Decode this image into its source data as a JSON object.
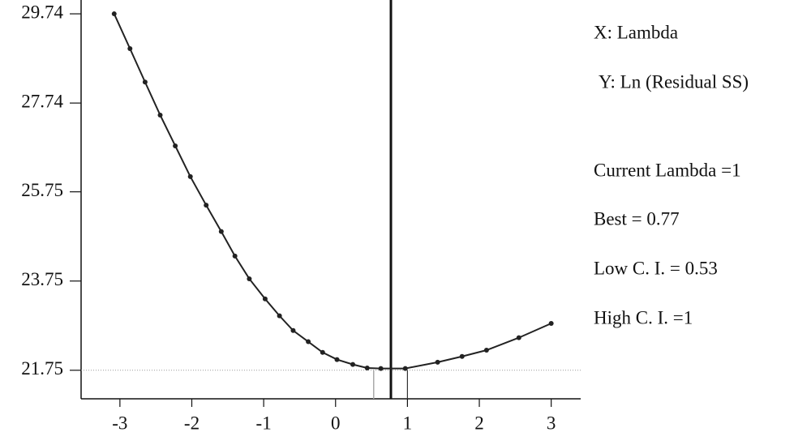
{
  "chart_data": {
    "type": "line",
    "x_label": "X: Lambda",
    "y_label": "Y: Ln (Residual SS)",
    "annotations": [
      "Current Lambda =1",
      "Best = 0.77",
      "Low C. I. = 0.53",
      "High C. I. =1"
    ],
    "x": [
      -3.08,
      -2.86,
      -2.65,
      -2.44,
      -2.23,
      -2.02,
      -1.8,
      -1.59,
      -1.4,
      -1.2,
      -0.98,
      -0.78,
      -0.59,
      -0.38,
      -0.18,
      0.02,
      0.24,
      0.44,
      0.63,
      0.97,
      1.42,
      1.76,
      2.1,
      2.55,
      3.0
    ],
    "values": [
      29.74,
      28.96,
      28.21,
      27.47,
      26.78,
      26.09,
      25.45,
      24.86,
      24.31,
      23.8,
      23.35,
      22.97,
      22.64,
      22.39,
      22.15,
      21.99,
      21.88,
      21.8,
      21.79,
      21.79,
      21.93,
      22.06,
      22.2,
      22.48,
      22.8
    ],
    "color": "#222222",
    "xlim": [
      -3.54,
      3.41
    ],
    "ylim": [
      21.11,
      30.05
    ],
    "xticks": [
      -3,
      -2,
      -1,
      0,
      1,
      2,
      3
    ],
    "yticks": [
      29.74,
      27.74,
      25.75,
      23.75,
      21.75
    ],
    "vlines": [
      0.77,
      0.53,
      1
    ],
    "hline": 21.75
  }
}
